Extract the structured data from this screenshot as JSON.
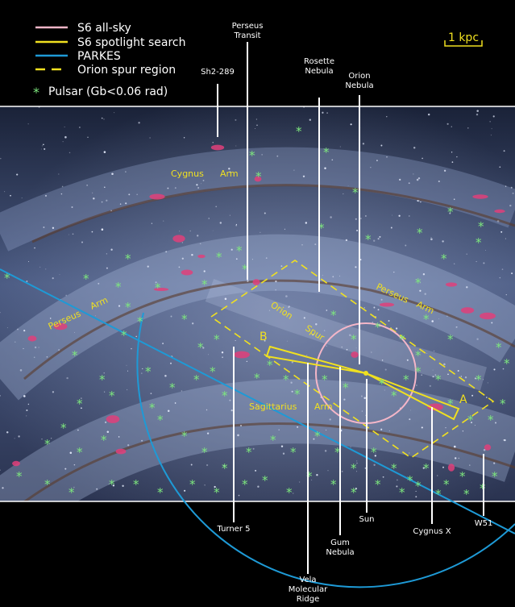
{
  "legend": {
    "items": [
      {
        "label": "S6 all-sky",
        "color": "#f4b6c8",
        "style": "solid"
      },
      {
        "label": "S6 spotlight search",
        "color": "#f0e020",
        "style": "solid"
      },
      {
        "label": "PARKES",
        "color": "#1e9ad6",
        "style": "solid"
      },
      {
        "label": "Orion spur region",
        "color": "#f0e020",
        "style": "dashed"
      }
    ],
    "pulsar_label": "Pulsar (Gb<0.06 rad)",
    "pulsar_color": "#7ee87e",
    "pulsar_glyph": "*"
  },
  "scale_bar": {
    "label": "1 kpc",
    "color": "#f0e020"
  },
  "callouts": {
    "sh2_289": "Sh2-289",
    "perseus_transit": [
      "Perseus",
      "Transit"
    ],
    "rosette_nebula": [
      "Rosette",
      "Nebula"
    ],
    "orion_nebula": [
      "Orion",
      "Nebula"
    ],
    "turner_5": "Turner 5",
    "vela_molecular_ridge": [
      "Vela",
      "Molecular",
      "Ridge"
    ],
    "gum_nebula": [
      "Gum",
      "Nebula"
    ],
    "sun": "Sun",
    "cygnus_x": "Cygnus X",
    "w51": "W51"
  },
  "arm_labels": {
    "cygnus": [
      "Cygnus",
      "Arm"
    ],
    "perseus_left": [
      "Perseus",
      "Arm"
    ],
    "perseus_right": [
      "Perseus",
      "Arm"
    ],
    "orion": [
      "Orion",
      "Spur"
    ],
    "sagittarius": [
      "Sagittarius",
      "Arm"
    ]
  },
  "region_letters": {
    "a": "A",
    "b": "B"
  },
  "colors": {
    "background": "#000000",
    "galaxy_base": "#3d4f76",
    "all_sky": "#f4b6c8",
    "spotlight": "#f0e020",
    "parkes": "#1e9ad6",
    "pulsar": "#7ee87e",
    "hii_region": "#e0407a",
    "callout_line": "#ffffff"
  }
}
